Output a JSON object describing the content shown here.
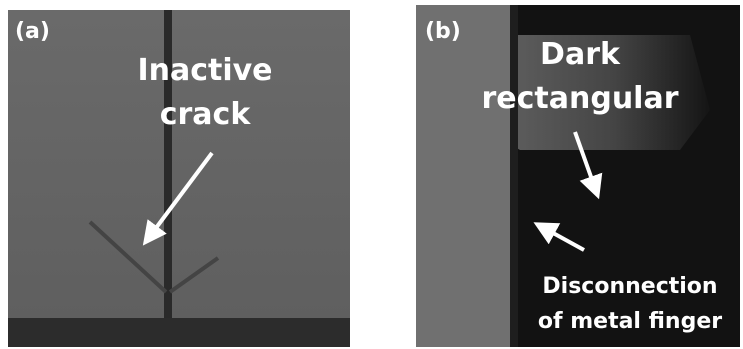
{
  "panels": [
    {
      "label": "(a)",
      "annotations": [
        "Inactive",
        "crack"
      ]
    },
    {
      "label": "(b)",
      "annotations": [
        "Dark",
        "rectangular",
        "Disconnection",
        "of metal finger"
      ]
    }
  ]
}
